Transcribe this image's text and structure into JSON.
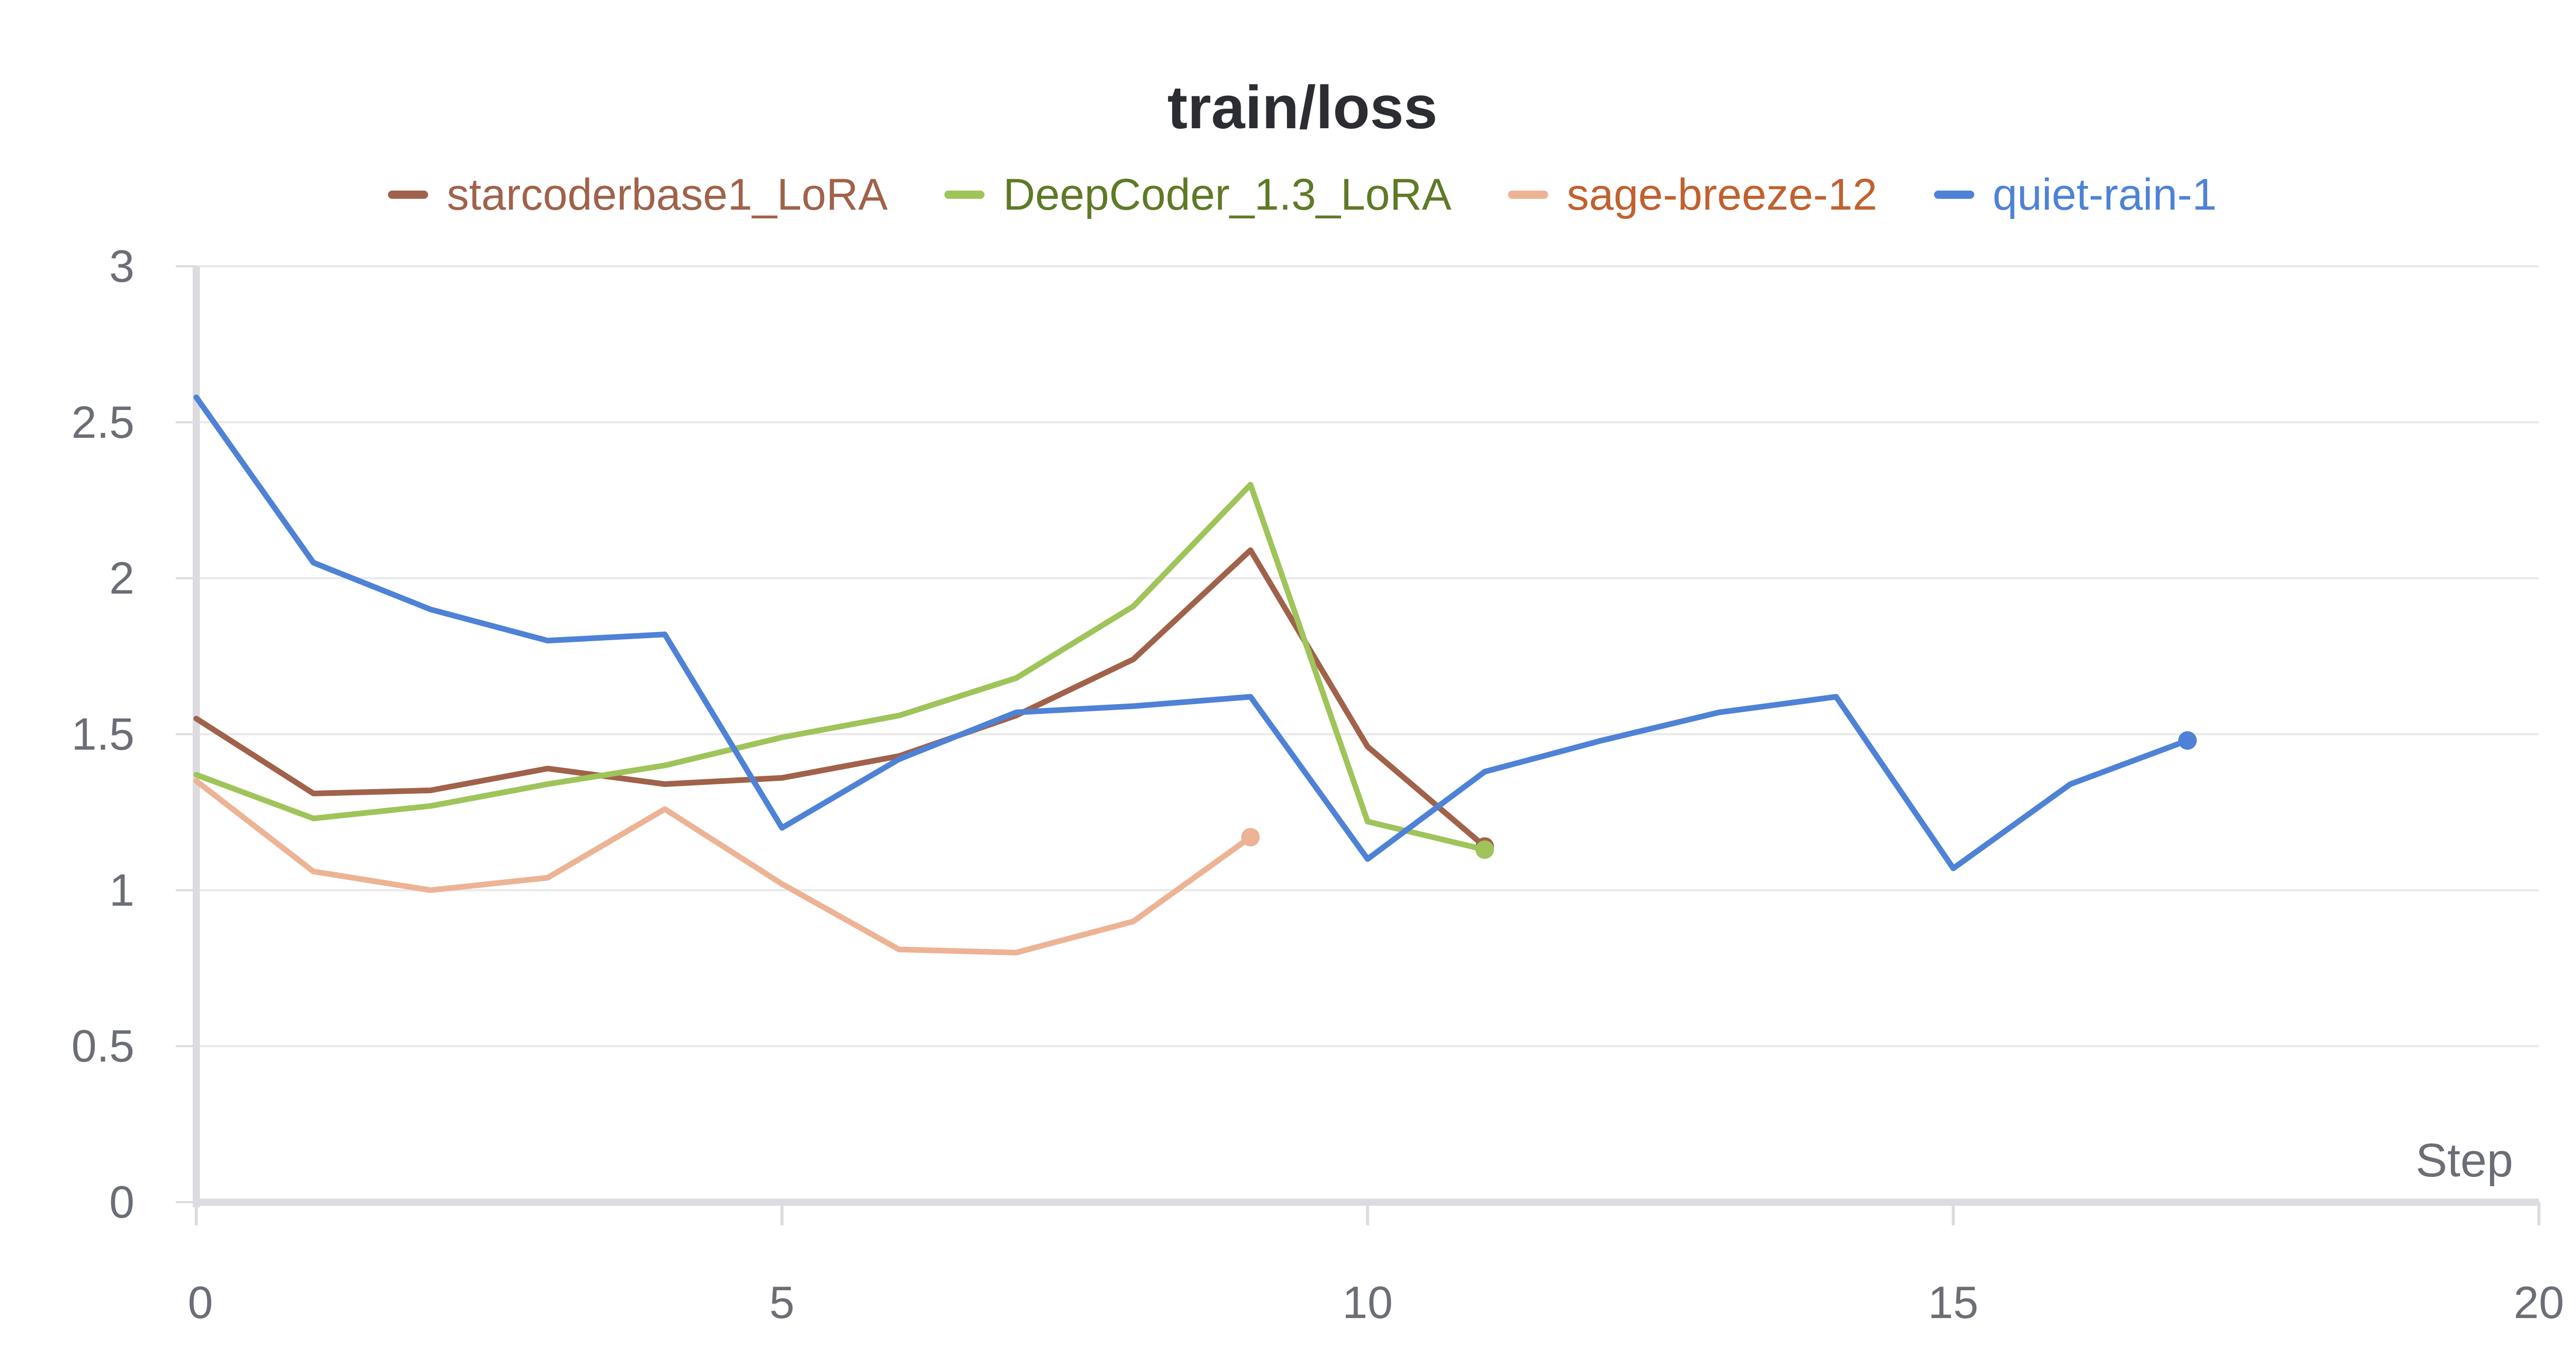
{
  "chart_data": {
    "type": "line",
    "title": "train/loss",
    "xlabel": "Step",
    "ylabel": "",
    "xlim": [
      0,
      20
    ],
    "ylim": [
      0,
      3
    ],
    "xticks": [
      0,
      5,
      10,
      15,
      20
    ],
    "yticks": [
      0,
      0.5,
      1,
      1.5,
      2,
      2.5,
      3
    ],
    "grid": true,
    "legend_position": "top-center",
    "series": [
      {
        "name": "starcoderbase1_LoRA",
        "color": "#a0624a",
        "label_color": "#a0624a",
        "x": [
          0,
          1,
          2,
          3,
          4,
          5,
          6,
          7,
          8,
          9,
          10,
          11
        ],
        "y": [
          1.55,
          1.31,
          1.32,
          1.39,
          1.34,
          1.36,
          1.43,
          1.56,
          1.74,
          2.09,
          1.46,
          1.14
        ]
      },
      {
        "name": "DeepCoder_1.3_LoRA",
        "color": "#9ec45a",
        "label_color": "#5e7a26",
        "x": [
          0,
          1,
          2,
          3,
          4,
          5,
          6,
          7,
          8,
          9,
          10,
          11
        ],
        "y": [
          1.37,
          1.23,
          1.27,
          1.34,
          1.4,
          1.49,
          1.56,
          1.68,
          1.91,
          2.3,
          1.22,
          1.13
        ]
      },
      {
        "name": "sage-breeze-12",
        "color": "#ecb394",
        "label_color": "#c0612e",
        "x": [
          0,
          1,
          2,
          3,
          4,
          5,
          6,
          7,
          8,
          9
        ],
        "y": [
          1.35,
          1.06,
          1.0,
          1.04,
          1.26,
          1.02,
          0.81,
          0.8,
          0.9,
          1.17
        ]
      },
      {
        "name": "quiet-rain-1",
        "color": "#4e82d6",
        "label_color": "#4e82d6",
        "x": [
          0,
          1,
          2,
          3,
          4,
          5,
          6,
          7,
          8,
          9,
          10,
          11,
          12,
          13,
          14,
          15,
          16,
          17
        ],
        "y": [
          2.58,
          2.05,
          1.9,
          1.8,
          1.82,
          1.2,
          1.42,
          1.57,
          1.59,
          1.62,
          1.1,
          1.38,
          1.48,
          1.57,
          1.62,
          1.07,
          1.34,
          1.48
        ]
      }
    ]
  }
}
